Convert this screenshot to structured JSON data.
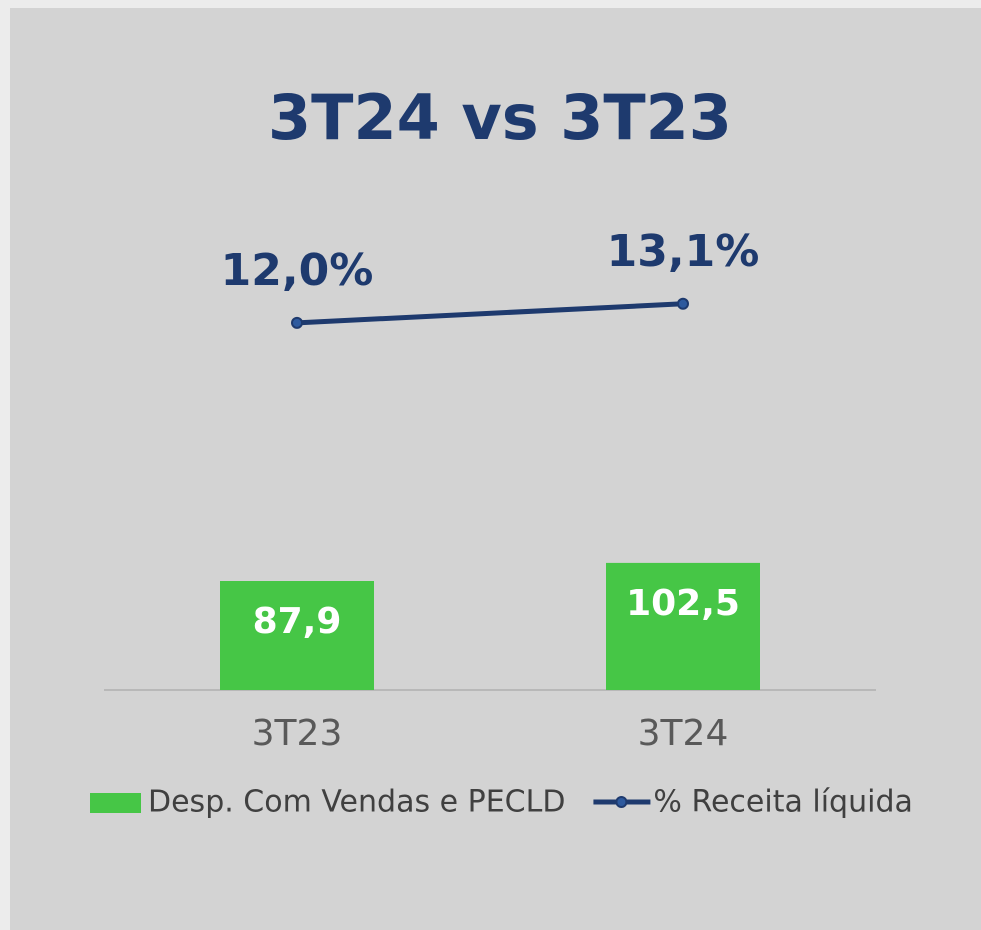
{
  "chart_data": {
    "type": "bar_line",
    "title": "3T24 vs 3T23",
    "categories": [
      "3T23",
      "3T24"
    ],
    "series": [
      {
        "name": "Desp. Com Vendas e PECLD",
        "type": "bar",
        "color": "#46c646",
        "values": [
          87.9,
          102.5
        ],
        "value_labels": [
          "87,9",
          "102,5"
        ]
      },
      {
        "name": "% Receita líquida",
        "type": "line",
        "axis": "y2",
        "color": "#1e3a6e",
        "values": [
          12.0,
          13.1
        ],
        "value_labels": [
          "12,0%",
          "13,1%"
        ]
      }
    ],
    "ylim": [
      0,
      500
    ],
    "y2lim": [
      -9.2,
      26.6
    ]
  }
}
